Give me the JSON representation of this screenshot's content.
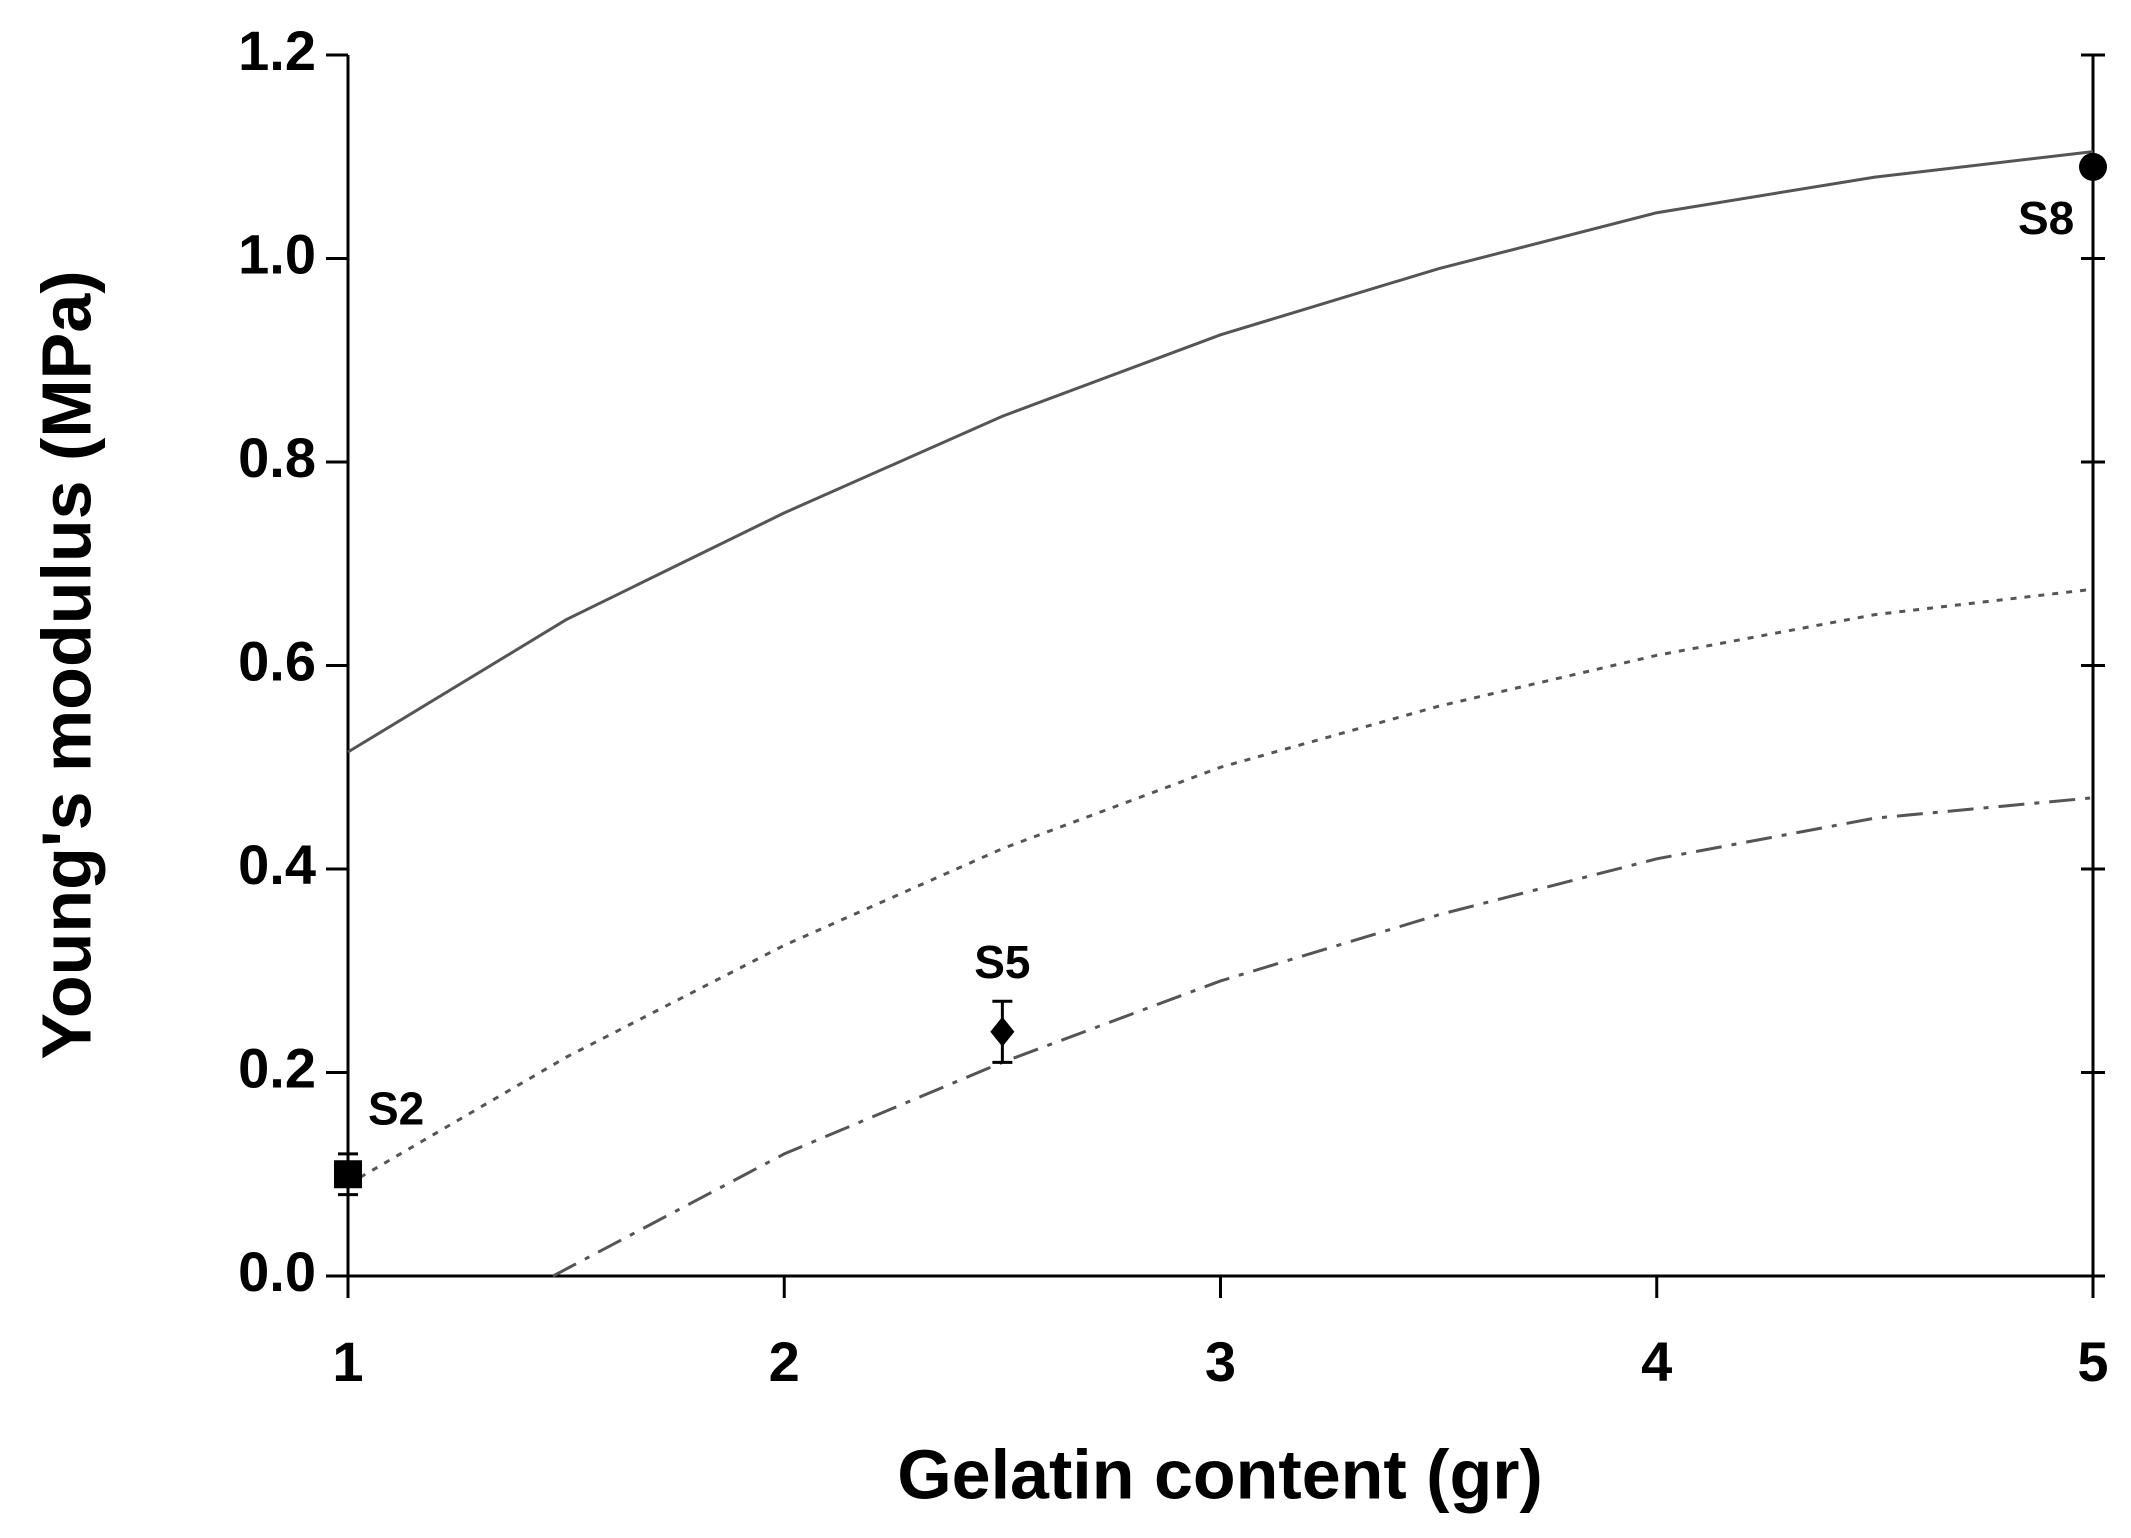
{
  "chart_data": {
    "type": "line",
    "x_label": "Gelatin content (gr)",
    "y_label": "Young's modulus (MPa)",
    "xlim": [
      1,
      5
    ],
    "ylim": [
      0,
      1.2
    ],
    "xticks": [
      1,
      2,
      3,
      4,
      5
    ],
    "yticks": [
      {
        "value": 0,
        "label": "0.0"
      },
      {
        "value": 0.2,
        "label": "0.2"
      },
      {
        "value": 0.4,
        "label": "0.4"
      },
      {
        "value": 0.6,
        "label": "0.6"
      },
      {
        "value": 0.8,
        "label": "0.8"
      },
      {
        "value": 1,
        "label": "1.0"
      },
      {
        "value": 1.2,
        "label": "1.2"
      }
    ],
    "series": [
      {
        "style": "solid",
        "color": "#555555",
        "x": [
          1,
          1.5,
          2,
          2.5,
          3,
          3.5,
          4,
          4.5,
          5
        ],
        "values": [
          0.515,
          0.645,
          0.75,
          0.845,
          0.925,
          0.99,
          1.045,
          1.08,
          1.105
        ]
      },
      {
        "style": "dotted",
        "color": "#555555",
        "x": [
          1,
          1.5,
          2,
          2.5,
          3,
          3.5,
          4,
          4.5,
          5
        ],
        "values": [
          0.09,
          0.215,
          0.325,
          0.42,
          0.5,
          0.56,
          0.61,
          0.65,
          0.675
        ]
      },
      {
        "style": "dashdot",
        "color": "#555555",
        "x": [
          1.47,
          2,
          2.5,
          3,
          3.5,
          4,
          4.5,
          5
        ],
        "values": [
          0,
          0.12,
          0.21,
          0.29,
          0.355,
          0.41,
          0.45,
          0.47
        ]
      }
    ],
    "points": {
      "color": "#000000",
      "labels": [
        "S2",
        "S5",
        "S8"
      ],
      "markers": [
        "square",
        "diamond",
        "circle"
      ],
      "x": [
        1,
        2.5,
        5
      ],
      "values": [
        0.1,
        0.24,
        1.09
      ],
      "errors": [
        0.02,
        0.03,
        0.005
      ]
    }
  }
}
